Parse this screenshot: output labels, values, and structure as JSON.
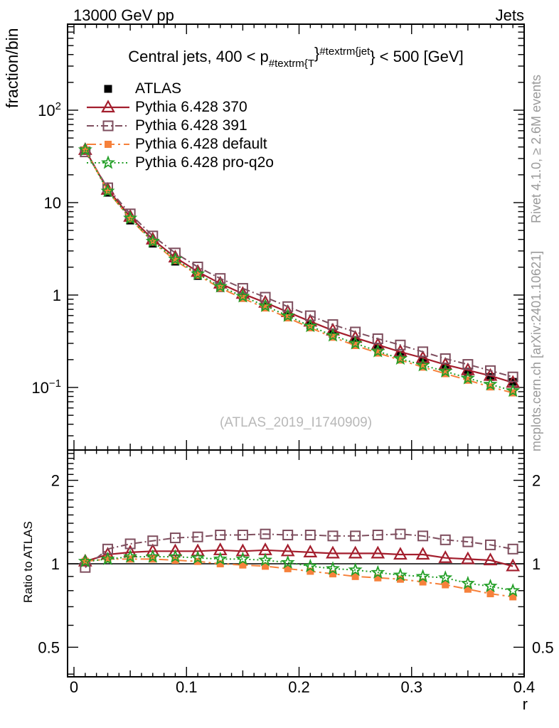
{
  "header": {
    "left": "13000 GeV pp",
    "right": "Jets"
  },
  "title": {
    "pre": "Central jets, 400 < p",
    "sub": "#textrm{T",
    "sup1": "}",
    "sup2": "#textrm{jet",
    "post": "} < 500 [GeV]"
  },
  "watermark": "(ATLAS_2019_I1740909)",
  "side_texts": {
    "top": "Rivet 4.1.0, ≥ 2.6M events",
    "bottom": "mcplots.cern.ch [arXiv:2401.10621]"
  },
  "axes": {
    "y_main_label": "fraction/bin",
    "y_ratio_label": "Ratio to ATLAS",
    "x_label": "r"
  },
  "colors": {
    "frame": "#000000",
    "watermark_grey": "#b8b8b8",
    "side_grey": "#9a9a9a",
    "reference_line": "#000000"
  },
  "chart_data": {
    "type": "line",
    "title": "Central jets, 400 < pT(jet) < 500 [GeV]",
    "xlabel": "r",
    "x_range": [
      0,
      0.4
    ],
    "x_major_ticks": [
      0,
      0.1,
      0.2,
      0.3,
      0.4
    ],
    "main_panel": {
      "ylabel": "fraction/bin",
      "yscale": "log",
      "ylim": [
        0.021,
        850
      ],
      "y_major_ticks": [
        0.1,
        1,
        10,
        100
      ]
    },
    "ratio_panel": {
      "ylabel": "Ratio to ATLAS",
      "yscale": "log",
      "ylim": [
        0.39,
        2.57
      ],
      "y_major_ticks": [
        0.5,
        1,
        2
      ]
    },
    "legend_position": "top-left",
    "x": [
      0.01,
      0.03,
      0.05,
      0.07,
      0.09,
      0.11,
      0.13,
      0.15,
      0.17,
      0.19,
      0.21,
      0.23,
      0.25,
      0.27,
      0.29,
      0.31,
      0.33,
      0.35,
      0.37,
      0.39
    ],
    "reference": {
      "name": "ATLAS",
      "marker": "square-filled",
      "color": "#000000",
      "values": [
        36.5,
        12.8,
        6.4,
        3.6,
        2.3,
        1.61,
        1.19,
        0.93,
        0.74,
        0.59,
        0.47,
        0.38,
        0.316,
        0.265,
        0.225,
        0.193,
        0.168,
        0.148,
        0.13,
        0.115
      ]
    },
    "series": [
      {
        "name": "Pythia 6.428 370",
        "color": "#a31e2d",
        "line": "solid",
        "marker": "triangle-open",
        "ratio_to_atlas": [
          1.02,
          1.08,
          1.1,
          1.11,
          1.11,
          1.11,
          1.12,
          1.11,
          1.12,
          1.11,
          1.1,
          1.09,
          1.09,
          1.09,
          1.08,
          1.08,
          1.05,
          1.04,
          1.03,
          0.98
        ]
      },
      {
        "name": "Pythia 6.428 391",
        "color": "#7e4e5e",
        "line": "dashdot",
        "marker": "square-open",
        "ratio_to_atlas": [
          0.97,
          1.13,
          1.18,
          1.21,
          1.24,
          1.25,
          1.27,
          1.27,
          1.28,
          1.27,
          1.27,
          1.26,
          1.26,
          1.27,
          1.28,
          1.26,
          1.22,
          1.2,
          1.17,
          1.13
        ]
      },
      {
        "name": "Pythia 6.428 default",
        "color": "#f6813b",
        "line": "dashdot-long",
        "marker": "square-filled",
        "ratio_to_atlas": [
          1.02,
          1.04,
          1.04,
          1.04,
          1.03,
          1.02,
          1.0,
          0.99,
          0.98,
          0.96,
          0.94,
          0.92,
          0.9,
          0.89,
          0.88,
          0.86,
          0.84,
          0.81,
          0.78,
          0.76
        ]
      },
      {
        "name": "Pythia 6.428 pro-q2o",
        "color": "#239f27",
        "line": "dotted",
        "marker": "star-open",
        "ratio_to_atlas": [
          1.02,
          1.04,
          1.06,
          1.06,
          1.06,
          1.05,
          1.04,
          1.04,
          1.03,
          1.01,
          0.98,
          0.96,
          0.95,
          0.93,
          0.91,
          0.9,
          0.89,
          0.85,
          0.83,
          0.8
        ]
      }
    ]
  }
}
